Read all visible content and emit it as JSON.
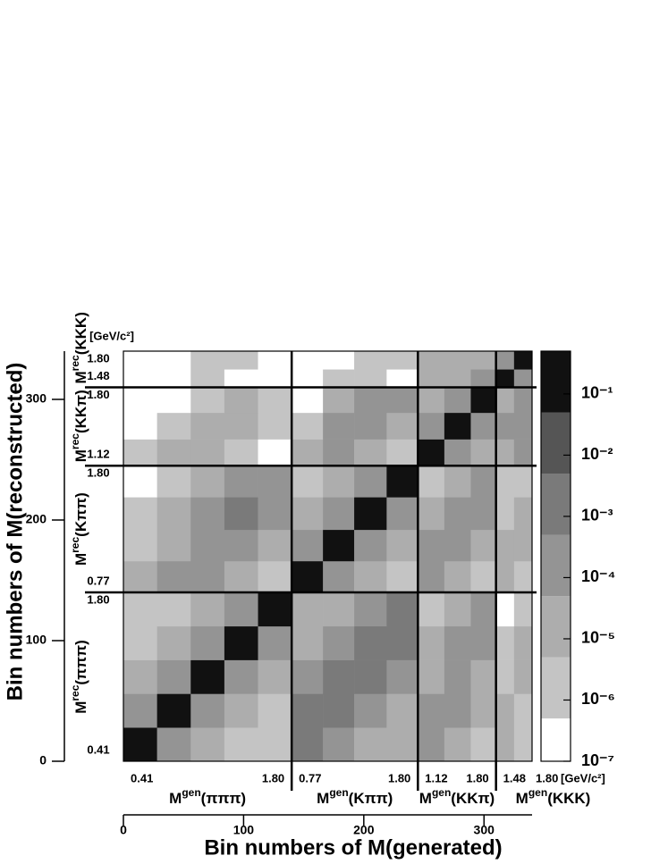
{
  "chart_data": {
    "type": "heatmap",
    "xlabel": "Bin numbers of M(generated)",
    "ylabel": "Bin numbers of M(reconstructed)",
    "xlim": [
      0,
      340
    ],
    "ylim": [
      0,
      340
    ],
    "xticks": [
      0,
      100,
      200,
      300
    ],
    "yticks": [
      0,
      100,
      200,
      300
    ],
    "xbins": [
      0,
      28,
      56,
      84,
      112,
      140,
      166,
      192,
      219,
      245,
      267,
      289,
      310,
      325,
      340
    ],
    "ybins": [
      0,
      28,
      56,
      84,
      112,
      140,
      166,
      192,
      219,
      245,
      267,
      289,
      310,
      325,
      340
    ],
    "z": [
      [
        0.1,
        0.0001,
        1e-05,
        1e-06,
        1e-06,
        0.001,
        0.0001,
        1e-05,
        1e-05,
        0.0001,
        1e-05,
        1e-06,
        1e-05,
        1e-06
      ],
      [
        0.0001,
        0.1,
        0.0001,
        1e-05,
        1e-06,
        0.001,
        0.001,
        0.0001,
        1e-05,
        0.0001,
        0.0001,
        1e-05,
        1e-05,
        1e-06
      ],
      [
        1e-05,
        0.0001,
        0.1,
        0.0001,
        1e-05,
        0.0001,
        0.001,
        0.001,
        0.0001,
        1e-05,
        0.0001,
        1e-05,
        1e-06,
        1e-05
      ],
      [
        1e-06,
        1e-05,
        0.0001,
        0.1,
        0.0001,
        1e-05,
        0.0001,
        0.001,
        0.001,
        1e-05,
        0.0001,
        0.0001,
        1e-06,
        1e-05
      ],
      [
        1e-06,
        1e-06,
        1e-05,
        0.0001,
        0.1,
        1e-05,
        1e-05,
        0.0001,
        0.001,
        1e-06,
        1e-05,
        0.0001,
        0,
        1e-06
      ],
      [
        1e-05,
        0.0001,
        0.0001,
        1e-05,
        1e-06,
        0.1,
        0.0001,
        1e-05,
        1e-06,
        0.0001,
        1e-05,
        1e-06,
        1e-05,
        1e-06
      ],
      [
        1e-06,
        1e-05,
        0.0001,
        0.0001,
        1e-05,
        0.0001,
        0.1,
        0.0001,
        1e-05,
        0.0001,
        0.0001,
        1e-05,
        1e-05,
        1e-05
      ],
      [
        1e-06,
        1e-05,
        0.0001,
        0.001,
        0.0001,
        1e-05,
        0.0001,
        0.1,
        0.0001,
        1e-05,
        0.0001,
        0.0001,
        1e-06,
        1e-05
      ],
      [
        0,
        1e-06,
        1e-05,
        0.0001,
        0.0001,
        1e-06,
        1e-05,
        0.0001,
        0.1,
        1e-06,
        1e-05,
        0.0001,
        1e-06,
        1e-06
      ],
      [
        1e-06,
        1e-05,
        1e-05,
        1e-06,
        0,
        1e-05,
        0.0001,
        1e-05,
        1e-06,
        0.1,
        0.0001,
        1e-05,
        1e-05,
        0.0001
      ],
      [
        0,
        1e-06,
        1e-05,
        1e-05,
        1e-06,
        1e-06,
        0.0001,
        0.0001,
        1e-05,
        0.0001,
        0.1,
        0.0001,
        0.0001,
        0.0001
      ],
      [
        0,
        0,
        1e-06,
        1e-05,
        1e-06,
        0,
        1e-05,
        0.0001,
        0.0001,
        1e-05,
        0.0001,
        0.1,
        1e-05,
        0.0001
      ],
      [
        0,
        0,
        1e-06,
        0,
        0,
        0,
        1e-06,
        1e-06,
        0,
        1e-05,
        1e-05,
        0.0001,
        0.1,
        0.0001
      ],
      [
        0,
        0,
        1e-06,
        1e-06,
        0,
        0,
        0,
        1e-06,
        1e-06,
        1e-05,
        1e-05,
        1e-05,
        0.0001,
        0.1
      ]
    ],
    "zscale": "log",
    "zlim": [
      1e-07,
      0.5
    ],
    "zticks": [
      {
        "value": 0.1,
        "label": "10⁻¹"
      },
      {
        "value": 0.01,
        "label": "10⁻²"
      },
      {
        "value": 0.001,
        "label": "10⁻³"
      },
      {
        "value": 0.0001,
        "label": "10⁻⁴"
      },
      {
        "value": 1e-05,
        "label": "10⁻⁵"
      },
      {
        "value": 1e-06,
        "label": "10⁻⁶"
      },
      {
        "value": 1e-07,
        "label": "10⁻⁷"
      }
    ],
    "levels": [
      5e-07,
      5e-06,
      5e-05,
      0.0005,
      0.005,
      0.05
    ],
    "colors": [
      "#c4c4c4",
      "#adadad",
      "#949494",
      "#7a7a7a",
      "#555555",
      "#111111"
    ],
    "mass_symbol": "M",
    "gen_sup": "gen",
    "rec_sup": "rec",
    "unit": "[GeV/c²]",
    "channels": [
      {
        "name": "(πππ)",
        "start": 0,
        "end": 140,
        "low": "0.41",
        "high": "1.80"
      },
      {
        "name": "(Kππ)",
        "start": 140,
        "end": 245,
        "low": "0.77",
        "high": "1.80"
      },
      {
        "name": "(KKπ)",
        "start": 245,
        "end": 310,
        "low": "1.12",
        "high": "1.80"
      },
      {
        "name": "(KKK)",
        "start": 310,
        "end": 340,
        "low": "1.48",
        "high": "1.80"
      }
    ]
  }
}
